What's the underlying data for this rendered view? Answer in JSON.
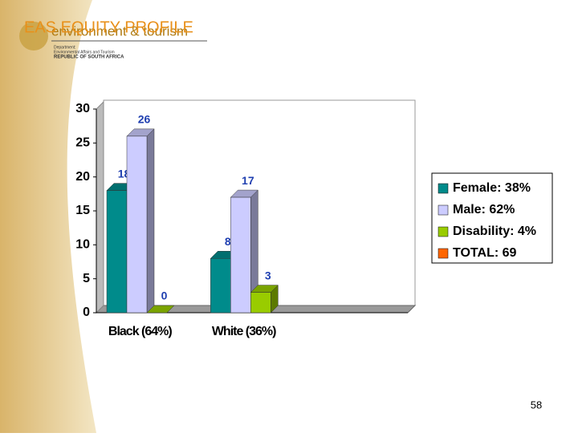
{
  "header": {
    "title": "EAS EQUITY PROFILE",
    "logo_text": "environment & tourism",
    "department": "Department:",
    "department_name": "Environmental Affairs and Tourism",
    "country": "REPUBLIC OF SOUTH AFRICA"
  },
  "page_number": "58",
  "chart_data": {
    "type": "bar3d",
    "categories": [
      "Black (64%)",
      "White (36%)",
      null
    ],
    "series": [
      {
        "name": "Female: 38%",
        "color": "#008b8b",
        "values": [
          18,
          8,
          null
        ]
      },
      {
        "name": "Male: 62%",
        "color": "#ccccff",
        "values": [
          26,
          17,
          null
        ]
      },
      {
        "name": "Disability: 4%",
        "color": "#99cc00",
        "values": [
          0,
          3,
          null
        ]
      },
      {
        "name": "TOTAL: 69",
        "color": "#ff6600",
        "values": [
          null,
          null,
          null
        ]
      }
    ],
    "ylim": [
      0,
      30
    ],
    "yticks": [
      0,
      5,
      10,
      15,
      20,
      25,
      30
    ],
    "legend": "right"
  }
}
